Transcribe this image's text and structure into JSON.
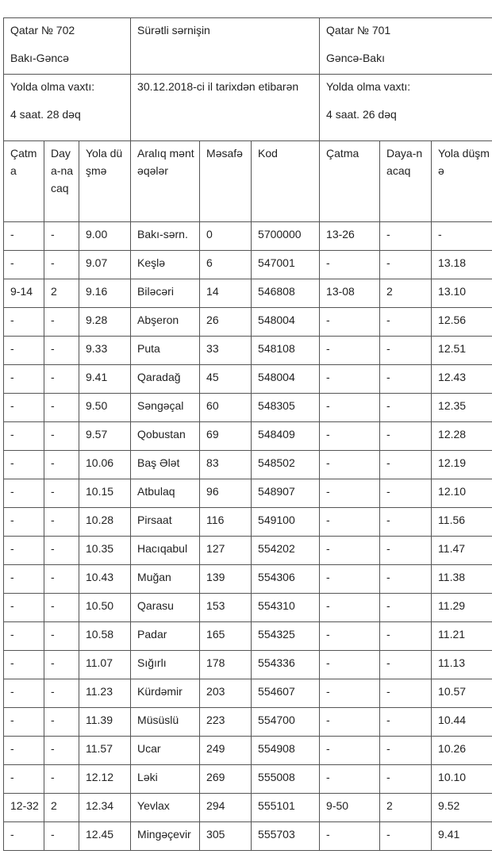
{
  "header": {
    "left_train": "Qatar № 702",
    "left_route": "Bakı-Gəncə",
    "center_type": "Sürətli sərnişin",
    "right_train": "Qatar № 701",
    "right_route": "Gəncə-Bakı",
    "left_travel_label": "Yolda olma vaxtı:",
    "left_travel_time": "4 saat. 28 dəq",
    "center_date": "30.12.2018-ci il tarixdən etibarən",
    "right_travel_label": "Yolda olma vaxtı:",
    "right_travel_time": "4 saat. 26 dəq"
  },
  "columns": [
    "Çatma",
    "Daya-nacaq",
    "Yola düşmə",
    "Aralıq məntəqələr",
    "Məsafə",
    "Kod",
    "Çatma",
    "Daya-nacaq",
    "Yola düşmə"
  ],
  "rows": [
    [
      "-",
      "-",
      "9.00",
      "Bakı-sərn.",
      "0",
      "5700000",
      "13-26",
      "-",
      "-"
    ],
    [
      "-",
      "-",
      "9.07",
      "Keşlə",
      "6",
      "547001",
      "-",
      "-",
      "13.18"
    ],
    [
      "9-14",
      "2",
      "9.16",
      "Biləcəri",
      "14",
      "546808",
      "13-08",
      "2",
      "13.10"
    ],
    [
      "-",
      "-",
      "9.28",
      "Abşeron",
      "26",
      "548004",
      "-",
      "-",
      "12.56"
    ],
    [
      "-",
      "-",
      "9.33",
      "Puta",
      "33",
      "548108",
      "-",
      "-",
      "12.51"
    ],
    [
      "-",
      "-",
      "9.41",
      "Qaradağ",
      "45",
      "548004",
      "-",
      "-",
      "12.43"
    ],
    [
      "-",
      "-",
      "9.50",
      "Səngəçal",
      "60",
      "548305",
      "-",
      "-",
      "12.35"
    ],
    [
      "-",
      "-",
      "9.57",
      "Qobustan",
      "69",
      "548409",
      "-",
      "-",
      "12.28"
    ],
    [
      "-",
      "-",
      "10.06",
      "Baş Ələt",
      "83",
      "548502",
      "-",
      "-",
      "12.19"
    ],
    [
      "-",
      "-",
      "10.15",
      "Atbulaq",
      "96",
      "548907",
      "-",
      "-",
      "12.10"
    ],
    [
      "-",
      "-",
      "10.28",
      "Pirsaat",
      "116",
      "549100",
      "-",
      "-",
      "11.56"
    ],
    [
      "-",
      "-",
      "10.35",
      "Hacıqabul",
      "127",
      "554202",
      "-",
      "-",
      "11.47"
    ],
    [
      "-",
      "-",
      "10.43",
      "Muğan",
      "139",
      "554306",
      "-",
      "-",
      "11.38"
    ],
    [
      "-",
      "-",
      "10.50",
      "Qarasu",
      "153",
      "554310",
      "-",
      "-",
      "11.29"
    ],
    [
      "-",
      "-",
      "10.58",
      "Padar",
      "165",
      "554325",
      "-",
      "-",
      "11.21"
    ],
    [
      "-",
      "-",
      "11.07",
      "Sığırlı",
      "178",
      "554336",
      "-",
      "-",
      "11.13"
    ],
    [
      "-",
      "-",
      "11.23",
      "Kürdəmir",
      "203",
      "554607",
      "-",
      "-",
      "10.57"
    ],
    [
      "-",
      "-",
      "11.39",
      "Müsüslü",
      "223",
      "554700",
      "-",
      "-",
      "10.44"
    ],
    [
      "-",
      "-",
      "11.57",
      "Ucar",
      "249",
      "554908",
      "-",
      "-",
      "10.26"
    ],
    [
      "-",
      "-",
      "12.12",
      "Ləki",
      "269",
      "555008",
      "-",
      "-",
      "10.10"
    ],
    [
      "12-32",
      "2",
      "12.34",
      "Yevlax",
      "294",
      "555101",
      "9-50",
      "2",
      "9.52"
    ],
    [
      "-",
      "-",
      "12.45",
      "Mingəçevir",
      "305",
      "555703",
      "-",
      "-",
      "9.41"
    ]
  ]
}
